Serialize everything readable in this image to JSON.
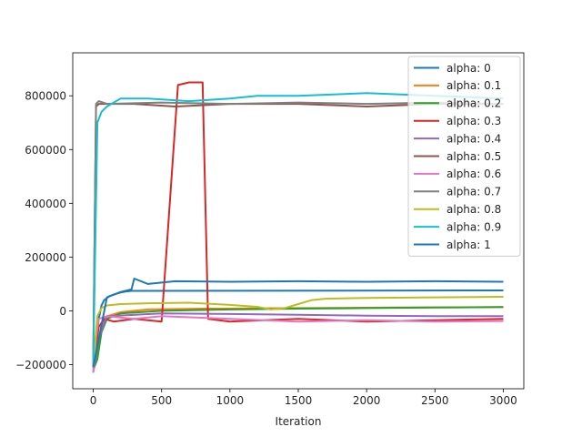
{
  "chart_data": {
    "type": "line",
    "title": "",
    "xlabel": "Iteration",
    "ylabel": "",
    "xlim": [
      -150,
      3150
    ],
    "ylim": [
      -290000,
      960000
    ],
    "grid": false,
    "legend_position": "top-right",
    "x_ticks": [
      0,
      500,
      1000,
      1500,
      2000,
      2500,
      3000
    ],
    "x_tick_labels": [
      "0",
      "500",
      "1000",
      "1500",
      "2000",
      "2500",
      "3000"
    ],
    "y_ticks": [
      -200000,
      0,
      200000,
      400000,
      600000,
      800000
    ],
    "y_tick_labels": [
      "−200000",
      "0",
      "200000",
      "400000",
      "600000",
      "800000"
    ],
    "series": [
      {
        "name": "alpha: 0",
        "color": "#1f77b4",
        "x": [
          0,
          20,
          40,
          60,
          80,
          120,
          160,
          200,
          240,
          280,
          3000
        ],
        "y": [
          -210000,
          -120000,
          -30000,
          20000,
          40000,
          55000,
          62000,
          68000,
          72000,
          74000,
          76000
        ]
      },
      {
        "name": "alpha: 0.1",
        "color": "#ff7f0e",
        "x": [
          0,
          30,
          60,
          100,
          200,
          400,
          800,
          1500,
          2200,
          3000
        ],
        "y": [
          -215000,
          -160000,
          -60000,
          -20000,
          -5000,
          5000,
          8000,
          10000,
          12000,
          14000
        ]
      },
      {
        "name": "alpha: 0.2",
        "color": "#2ca02c",
        "x": [
          0,
          30,
          60,
          100,
          200,
          500,
          1000,
          1500,
          2000,
          2500,
          3000
        ],
        "y": [
          -220000,
          -180000,
          -80000,
          -30000,
          -10000,
          0,
          5000,
          8000,
          10000,
          12000,
          14000
        ]
      },
      {
        "name": "alpha: 0.3",
        "color": "#d62728",
        "x": [
          0,
          40,
          80,
          150,
          300,
          500,
          620,
          700,
          800,
          840,
          1000,
          1500,
          2000,
          2500,
          3000
        ],
        "y": [
          -200000,
          -60000,
          -30000,
          -40000,
          -30000,
          -40000,
          840000,
          850000,
          850000,
          -30000,
          -40000,
          -30000,
          -40000,
          -35000,
          -30000
        ]
      },
      {
        "name": "alpha: 0.4",
        "color": "#9467bd",
        "x": [
          0,
          40,
          100,
          500,
          1000,
          1500,
          2000,
          2500,
          3000
        ],
        "y": [
          -230000,
          -100000,
          -20000,
          -10000,
          -12000,
          -15000,
          -18000,
          -20000,
          -20000
        ]
      },
      {
        "name": "alpha: 0.5",
        "color": "#8c564b",
        "x": [
          0,
          20,
          40,
          100,
          300,
          600,
          1000,
          1500,
          2000,
          2500,
          3000
        ],
        "y": [
          -200000,
          760000,
          770000,
          770000,
          770000,
          760000,
          770000,
          770000,
          760000,
          770000,
          770000
        ]
      },
      {
        "name": "alpha: 0.6",
        "color": "#e377c2",
        "x": [
          0,
          20,
          40,
          100,
          300,
          500,
          1000,
          1500,
          2000,
          2500,
          3000
        ],
        "y": [
          -230000,
          -100000,
          -30000,
          -20000,
          -30000,
          -20000,
          -30000,
          -40000,
          -35000,
          -40000,
          -38000
        ]
      },
      {
        "name": "alpha: 0.7",
        "color": "#7f7f7f",
        "x": [
          0,
          20,
          40,
          100,
          500,
          1000,
          1500,
          2000,
          2500,
          3000
        ],
        "y": [
          -210000,
          770000,
          780000,
          770000,
          775000,
          770000,
          775000,
          770000,
          775000,
          770000
        ]
      },
      {
        "name": "alpha: 0.8",
        "color": "#bcbd22",
        "x": [
          0,
          30,
          60,
          100,
          200,
          400,
          700,
          1000,
          1200,
          1300,
          1400,
          1500,
          1600,
          1700,
          2000,
          2500,
          3000
        ],
        "y": [
          -200000,
          -20000,
          10000,
          20000,
          25000,
          28000,
          30000,
          22000,
          15000,
          5000,
          10000,
          25000,
          40000,
          45000,
          48000,
          50000,
          52000
        ]
      },
      {
        "name": "alpha: 0.9",
        "color": "#17becf",
        "x": [
          0,
          30,
          60,
          100,
          200,
          400,
          700,
          1000,
          1200,
          1300,
          1500,
          2000,
          2500,
          3000
        ],
        "y": [
          -200000,
          700000,
          740000,
          760000,
          790000,
          790000,
          780000,
          790000,
          800000,
          800000,
          800000,
          810000,
          800000,
          790000
        ]
      },
      {
        "name": "alpha: 1",
        "color": "#1f77b4",
        "x": [
          0,
          100,
          200,
          280,
          300,
          400,
          600,
          1000,
          1500,
          2000,
          2500,
          3000
        ],
        "y": [
          -210000,
          50000,
          70000,
          80000,
          120000,
          100000,
          110000,
          108000,
          110000,
          108000,
          110000,
          108000
        ]
      }
    ]
  }
}
